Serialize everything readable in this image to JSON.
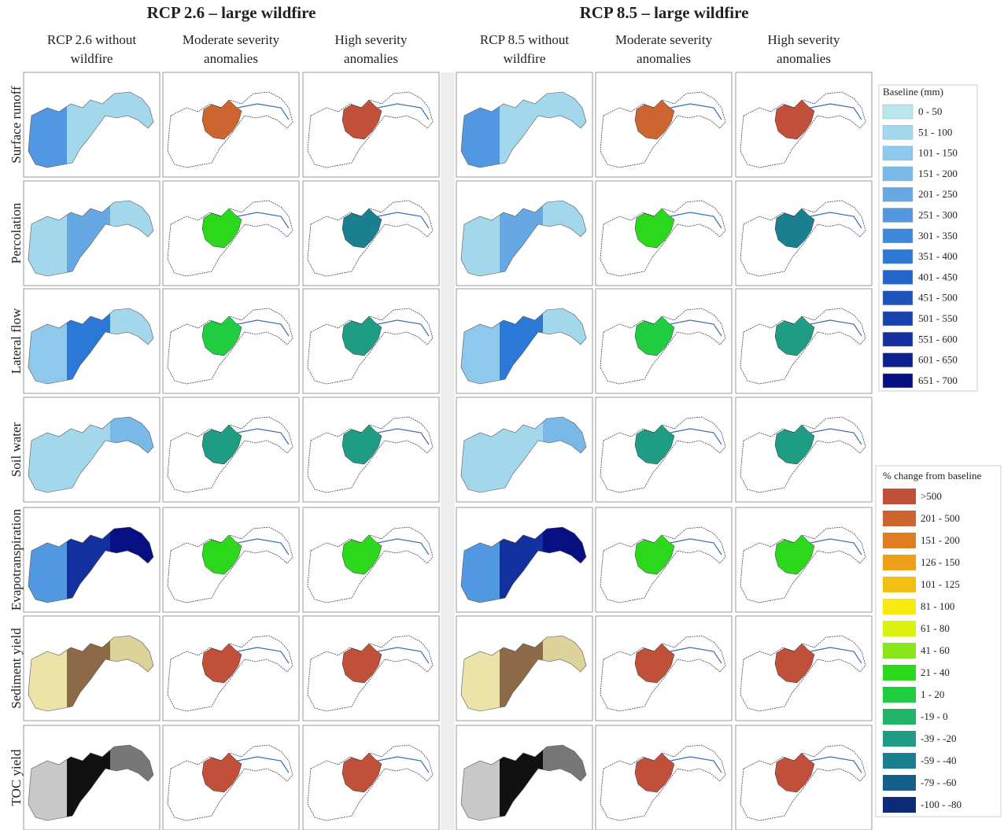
{
  "groups": [
    {
      "title": "RCP 2.6 – large wildfire",
      "columns": [
        [
          "RCP 2.6 without",
          "wildfire"
        ],
        [
          "Moderate severity",
          "anomalies"
        ],
        [
          "High severity",
          "anomalies"
        ]
      ]
    },
    {
      "title": "RCP 8.5 – large wildfire",
      "columns": [
        [
          "RCP 8.5 without",
          "wildfire"
        ],
        [
          "Moderate severity",
          "anomalies"
        ],
        [
          "High severity",
          "anomalies"
        ]
      ]
    }
  ],
  "rows": [
    "Surface runoff",
    "Percolation",
    "Lateral flow",
    "Soil water",
    "Evapotranspiration",
    "Sediment yield",
    "TOC yield"
  ],
  "legend_baseline": {
    "title": "Baseline (mm)",
    "items": [
      {
        "label": "0 - 50",
        "color": "#b8e8ee"
      },
      {
        "label": "51 - 100",
        "color": "#a3d8ec"
      },
      {
        "label": "101 - 150",
        "color": "#8ec8ec"
      },
      {
        "label": "151 - 200",
        "color": "#7ab8e8"
      },
      {
        "label": "201 - 250",
        "color": "#66a8e4"
      },
      {
        "label": "251 - 300",
        "color": "#5298e0"
      },
      {
        "label": "301 - 350",
        "color": "#3e88dc"
      },
      {
        "label": "351 - 400",
        "color": "#2c78d6"
      },
      {
        "label": "401 - 450",
        "color": "#2466c8"
      },
      {
        "label": "451 - 500",
        "color": "#1e54ba"
      },
      {
        "label": "501 - 550",
        "color": "#1842ac"
      },
      {
        "label": "551 - 600",
        "color": "#12309e"
      },
      {
        "label": "601 - 650",
        "color": "#0c2090"
      },
      {
        "label": "651 - 700",
        "color": "#061082"
      }
    ]
  },
  "legend_change": {
    "title": "% change from baseline",
    "items": [
      {
        "label": ">500",
        "color": "#c0503a"
      },
      {
        "label": "201 - 500",
        "color": "#cc6530"
      },
      {
        "label": "151 - 200",
        "color": "#e07c22"
      },
      {
        "label": "126 - 150",
        "color": "#eea018"
      },
      {
        "label": "101 - 125",
        "color": "#f2c014"
      },
      {
        "label": "81 - 100",
        "color": "#f8ea10"
      },
      {
        "label": "61 - 80",
        "color": "#dcf20e"
      },
      {
        "label": "41 - 60",
        "color": "#8ae61a"
      },
      {
        "label": "21 - 40",
        "color": "#2cd81c"
      },
      {
        "label": "1 - 20",
        "color": "#20cc40"
      },
      {
        "label": "-19 - 0",
        "color": "#22b468"
      },
      {
        "label": "-39 - -20",
        "color": "#1e9c84"
      },
      {
        "label": "-59 - -40",
        "color": "#1a8090"
      },
      {
        "label": "-79 - -60",
        "color": "#15608a"
      },
      {
        "label": "-100 - -80",
        "color": "#0c2c78"
      }
    ]
  }
}
